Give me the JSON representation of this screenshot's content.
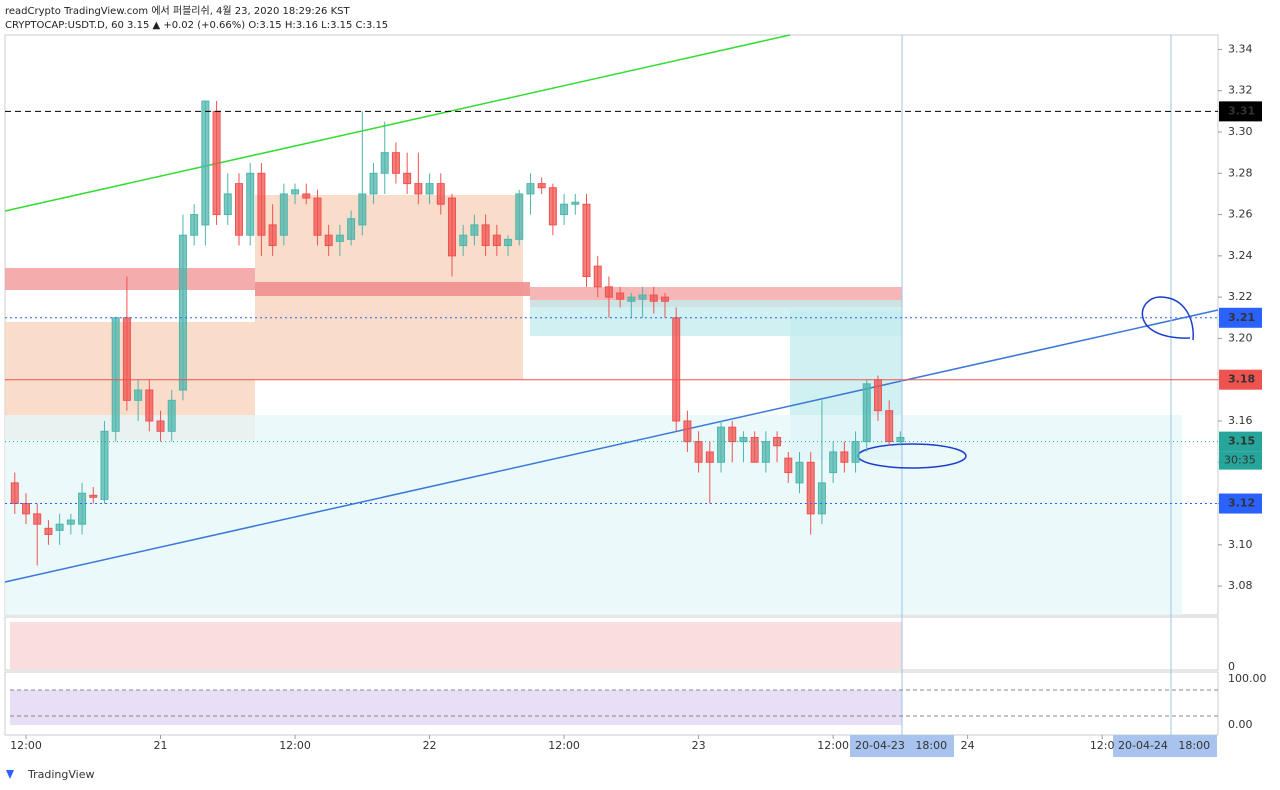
{
  "header": {
    "publisher": "readCrypto TradingView.com 에서 퍼블리쉬, 4월 23, 2020 18:29:26 KST",
    "symbol": "CRYPTOCAP:USDT.D, 60 3.15 ▲ +0.02 (+0.66%) O:3.15 H:3.16 L:3.15 C:3.15"
  },
  "chart_data": {
    "type": "candlestick",
    "ylim": [
      3.066,
      3.347
    ],
    "yticks": [
      3.08,
      {
        "value": 3.1,
        "label": "3.10"
      },
      3.12,
      3.14,
      3.16,
      3.18,
      {
        "value": 3.2,
        "label": "3.20"
      },
      3.22,
      3.24,
      3.26,
      3.28,
      {
        "value": 3.3,
        "label": "3.30"
      },
      3.32,
      3.34
    ],
    "xticks": [
      {
        "value": 1,
        "label": "12:00"
      },
      {
        "value": 13,
        "label": "21"
      },
      {
        "value": 25,
        "label": "12:00"
      },
      {
        "value": 37,
        "label": "22"
      },
      {
        "value": 49,
        "label": "12:00"
      },
      {
        "value": 61,
        "label": "23"
      },
      {
        "value": 73,
        "label": "12:00"
      },
      {
        "value": 85,
        "label": "24"
      },
      {
        "value": 97,
        "label": "12:0"
      }
    ],
    "up_color": "#4db6ac",
    "down_color": "#ef5350",
    "ohlc": [
      [
        3.13,
        3.135,
        3.115,
        3.12
      ],
      [
        3.12,
        3.125,
        3.11,
        3.115
      ],
      [
        3.115,
        3.12,
        3.09,
        3.11
      ],
      [
        3.108,
        3.112,
        3.1,
        3.105
      ],
      [
        3.107,
        3.115,
        3.1,
        3.11
      ],
      [
        3.11,
        3.115,
        3.105,
        3.112
      ],
      [
        3.11,
        3.13,
        3.105,
        3.125
      ],
      [
        3.124,
        3.128,
        3.12,
        3.123
      ],
      [
        3.122,
        3.16,
        3.12,
        3.155
      ],
      [
        3.155,
        3.21,
        3.15,
        3.21
      ],
      [
        3.21,
        3.23,
        3.165,
        3.17
      ],
      [
        3.17,
        3.18,
        3.16,
        3.175
      ],
      [
        3.175,
        3.18,
        3.155,
        3.16
      ],
      [
        3.16,
        3.165,
        3.15,
        3.155
      ],
      [
        3.155,
        3.175,
        3.15,
        3.17
      ],
      [
        3.175,
        3.26,
        3.17,
        3.25
      ],
      [
        3.25,
        3.265,
        3.245,
        3.26
      ],
      [
        3.255,
        3.315,
        3.245,
        3.315
      ],
      [
        3.31,
        3.315,
        3.255,
        3.26
      ],
      [
        3.26,
        3.28,
        3.255,
        3.27
      ],
      [
        3.275,
        3.28,
        3.245,
        3.25
      ],
      [
        3.25,
        3.285,
        3.245,
        3.28
      ],
      [
        3.28,
        3.285,
        3.24,
        3.25
      ],
      [
        3.255,
        3.265,
        3.24,
        3.245
      ],
      [
        3.25,
        3.275,
        3.245,
        3.27
      ],
      [
        3.27,
        3.275,
        3.265,
        3.272
      ],
      [
        3.27,
        3.275,
        3.265,
        3.268
      ],
      [
        3.268,
        3.272,
        3.245,
        3.25
      ],
      [
        3.25,
        3.255,
        3.24,
        3.245
      ],
      [
        3.247,
        3.255,
        3.24,
        3.25
      ],
      [
        3.248,
        3.262,
        3.245,
        3.258
      ],
      [
        3.255,
        3.31,
        3.25,
        3.27
      ],
      [
        3.27,
        3.285,
        3.265,
        3.28
      ],
      [
        3.28,
        3.305,
        3.27,
        3.29
      ],
      [
        3.29,
        3.295,
        3.275,
        3.28
      ],
      [
        3.28,
        3.29,
        3.27,
        3.275
      ],
      [
        3.275,
        3.29,
        3.265,
        3.27
      ],
      [
        3.27,
        3.28,
        3.265,
        3.275
      ],
      [
        3.275,
        3.28,
        3.26,
        3.265
      ],
      [
        3.268,
        3.27,
        3.23,
        3.24
      ],
      [
        3.245,
        3.255,
        3.24,
        3.25
      ],
      [
        3.25,
        3.26,
        3.245,
        3.255
      ],
      [
        3.255,
        3.26,
        3.24,
        3.245
      ],
      [
        3.25,
        3.255,
        3.24,
        3.245
      ],
      [
        3.245,
        3.25,
        3.24,
        3.248
      ],
      [
        3.248,
        3.272,
        3.245,
        3.27
      ],
      [
        3.27,
        3.28,
        3.26,
        3.275
      ],
      [
        3.275,
        3.278,
        3.27,
        3.273
      ],
      [
        3.273,
        3.275,
        3.25,
        3.255
      ],
      [
        3.26,
        3.27,
        3.255,
        3.265
      ],
      [
        3.265,
        3.27,
        3.26,
        3.266
      ],
      [
        3.265,
        3.27,
        3.225,
        3.23
      ],
      [
        3.235,
        3.24,
        3.22,
        3.225
      ],
      [
        3.225,
        3.23,
        3.21,
        3.22
      ],
      [
        3.222,
        3.225,
        3.215,
        3.219
      ],
      [
        3.218,
        3.222,
        3.21,
        3.22
      ],
      [
        3.219,
        3.225,
        3.21,
        3.221
      ],
      [
        3.221,
        3.225,
        3.212,
        3.218
      ],
      [
        3.22,
        3.222,
        3.21,
        3.218
      ],
      [
        3.21,
        3.215,
        3.155,
        3.16
      ],
      [
        3.16,
        3.165,
        3.145,
        3.15
      ],
      [
        3.15,
        3.155,
        3.135,
        3.14
      ],
      [
        3.145,
        3.15,
        3.12,
        3.14
      ],
      [
        3.14,
        3.16,
        3.135,
        3.157
      ],
      [
        3.157,
        3.16,
        3.14,
        3.15
      ],
      [
        3.15,
        3.155,
        3.14,
        3.152
      ],
      [
        3.152,
        3.155,
        3.14,
        3.14
      ],
      [
        3.14,
        3.155,
        3.135,
        3.15
      ],
      [
        3.152,
        3.155,
        3.14,
        3.148
      ],
      [
        3.142,
        3.145,
        3.13,
        3.135
      ],
      [
        3.13,
        3.145,
        3.125,
        3.14
      ],
      [
        3.14,
        3.145,
        3.105,
        3.115
      ],
      [
        3.115,
        3.17,
        3.11,
        3.13
      ],
      [
        3.135,
        3.15,
        3.13,
        3.145
      ],
      [
        3.145,
        3.15,
        3.135,
        3.14
      ],
      [
        3.14,
        3.155,
        3.135,
        3.15
      ],
      [
        3.15,
        3.18,
        3.145,
        3.178
      ],
      [
        3.18,
        3.182,
        3.16,
        3.165
      ],
      [
        3.165,
        3.17,
        3.148,
        3.15
      ],
      [
        3.15,
        3.155,
        3.148,
        3.152
      ]
    ],
    "price_labels": [
      {
        "value": 3.31,
        "color": "#000000"
      },
      {
        "value": 3.21,
        "color": "#2962ff"
      },
      {
        "value": 3.18,
        "color": "#ef5350"
      },
      {
        "value": 3.15,
        "color": "#26a69a"
      },
      {
        "value": 3.12,
        "color": "#2962ff"
      }
    ],
    "countdown": "30:35"
  },
  "indicators": {
    "volume_zero": "0",
    "osc_top": "100.00",
    "osc_bottom": "0.00"
  },
  "footer": {
    "date_left": "20-04-23   18:00",
    "date_right": "20-04-24   18:00",
    "brand": "TradingView"
  }
}
